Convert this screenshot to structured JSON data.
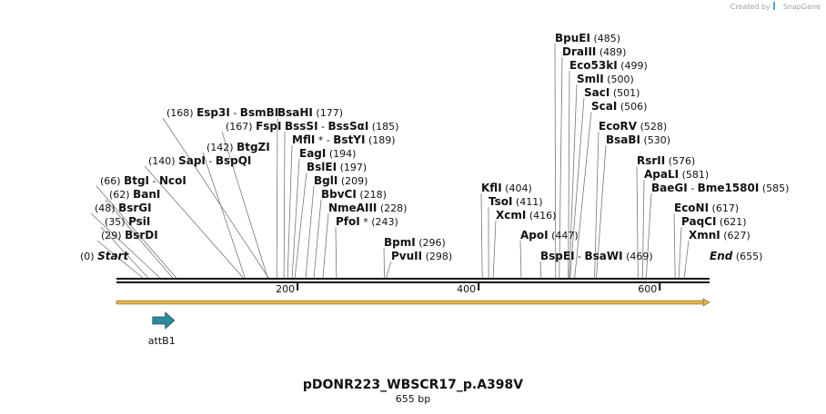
{
  "watermark": {
    "prefix": "Created by",
    "brand": "SnapGene"
  },
  "plasmid": {
    "name": "pDONR223_WBSCR17_p.A398V",
    "length_label": "655 bp",
    "length": 655
  },
  "ticks": [
    {
      "pos": 200,
      "label": "200"
    },
    {
      "pos": 400,
      "label": "400"
    },
    {
      "pos": 600,
      "label": "600"
    }
  ],
  "features": [
    {
      "name": "attB1",
      "start": 40,
      "end": 64,
      "direction": "forward",
      "color": "#2f8aa0"
    }
  ],
  "orf": {
    "start": 1,
    "end": 655,
    "color": "#e3b34a"
  },
  "sites": [
    {
      "id": "start",
      "parts": [
        {
          "t": "Start",
          "style": "italic"
        }
      ],
      "pos_label": "(0)",
      "pos": 0,
      "pos_side": "left"
    },
    {
      "id": "bsrdi",
      "parts": [
        {
          "t": "BsrDI"
        }
      ],
      "pos_label": "(29)",
      "pos": 29,
      "pos_side": "left"
    },
    {
      "id": "psii",
      "parts": [
        {
          "t": "PsiI"
        }
      ],
      "pos_label": "(35)",
      "pos": 35,
      "pos_side": "left"
    },
    {
      "id": "bsrgi",
      "parts": [
        {
          "t": "BsrGI"
        }
      ],
      "pos_label": "(48)",
      "pos": 48,
      "pos_side": "left"
    },
    {
      "id": "bani",
      "parts": [
        {
          "t": "BanI"
        }
      ],
      "pos_label": "(62)",
      "pos": 62,
      "pos_side": "left"
    },
    {
      "id": "btgi",
      "parts": [
        {
          "t": "BtgI"
        },
        {
          "t": " - ",
          "style": "sep"
        },
        {
          "t": "NcoI"
        }
      ],
      "pos_label": "(66)",
      "pos": 66,
      "pos_side": "left"
    },
    {
      "id": "sapi",
      "parts": [
        {
          "t": "SapI"
        },
        {
          "t": " - ",
          "style": "sep"
        },
        {
          "t": "BspQI"
        }
      ],
      "pos_label": "(140)",
      "pos": 140,
      "pos_side": "left"
    },
    {
      "id": "btgzi",
      "parts": [
        {
          "t": "BtgZI"
        }
      ],
      "pos_label": "(142)",
      "pos": 142,
      "pos_side": "left"
    },
    {
      "id": "fspi",
      "parts": [
        {
          "t": "FspI"
        }
      ],
      "pos_label": "(167)",
      "pos": 167,
      "pos_side": "left"
    },
    {
      "id": "esp3i",
      "parts": [
        {
          "t": "Esp3I"
        },
        {
          "t": " - ",
          "style": "sep"
        },
        {
          "t": "BsmBI"
        }
      ],
      "pos_label": "(168)",
      "pos": 168,
      "pos_side": "left"
    },
    {
      "id": "bsahi",
      "parts": [
        {
          "t": "BsaHI"
        }
      ],
      "pos_label": "(177)",
      "pos": 177,
      "pos_side": "right"
    },
    {
      "id": "bsssi",
      "parts": [
        {
          "t": "BssSI"
        },
        {
          "t": " - ",
          "style": "sep"
        },
        {
          "t": "BssSαI"
        }
      ],
      "pos_label": "(185)",
      "pos": 185,
      "pos_side": "right"
    },
    {
      "id": "mfli",
      "parts": [
        {
          "t": "MflI"
        },
        {
          "t": " * - ",
          "style": "sep"
        },
        {
          "t": "BstYI"
        }
      ],
      "pos_label": "(189)",
      "pos": 189,
      "pos_side": "right"
    },
    {
      "id": "eagi",
      "parts": [
        {
          "t": "EagI"
        }
      ],
      "pos_label": "(194)",
      "pos": 194,
      "pos_side": "right"
    },
    {
      "id": "bslei",
      "parts": [
        {
          "t": "BslEI"
        }
      ],
      "pos_label": "(197)",
      "pos": 197,
      "pos_side": "right"
    },
    {
      "id": "bgli",
      "parts": [
        {
          "t": "BglI"
        }
      ],
      "pos_label": "(209)",
      "pos": 209,
      "pos_side": "right"
    },
    {
      "id": "bbvci",
      "parts": [
        {
          "t": "BbvCI"
        }
      ],
      "pos_label": "(218)",
      "pos": 218,
      "pos_side": "right"
    },
    {
      "id": "nmeaiii",
      "parts": [
        {
          "t": "NmeAIII"
        }
      ],
      "pos_label": "(228)",
      "pos": 228,
      "pos_side": "right"
    },
    {
      "id": "pfoi",
      "parts": [
        {
          "t": "PfoI"
        },
        {
          "t": " *",
          "style": "sep"
        }
      ],
      "pos_label": "(243)",
      "pos": 243,
      "pos_side": "right"
    },
    {
      "id": "bpmi",
      "parts": [
        {
          "t": "BpmI"
        }
      ],
      "pos_label": "(296)",
      "pos": 296,
      "pos_side": "right"
    },
    {
      "id": "pvuii",
      "parts": [
        {
          "t": "PvuII"
        }
      ],
      "pos_label": "(298)",
      "pos": 298,
      "pos_side": "right"
    },
    {
      "id": "kfli",
      "parts": [
        {
          "t": "KflI"
        }
      ],
      "pos_label": "(404)",
      "pos": 404,
      "pos_side": "right"
    },
    {
      "id": "tsoi",
      "parts": [
        {
          "t": "TsoI"
        }
      ],
      "pos_label": "(411)",
      "pos": 411,
      "pos_side": "right"
    },
    {
      "id": "xcmi",
      "parts": [
        {
          "t": "XcmI"
        }
      ],
      "pos_label": "(416)",
      "pos": 416,
      "pos_side": "right"
    },
    {
      "id": "apoi",
      "parts": [
        {
          "t": "ApoI"
        }
      ],
      "pos_label": "(447)",
      "pos": 447,
      "pos_side": "right"
    },
    {
      "id": "bspei",
      "parts": [
        {
          "t": "BspEI"
        },
        {
          "t": " - ",
          "style": "sep"
        },
        {
          "t": "BsaWI"
        }
      ],
      "pos_label": "(469)",
      "pos": 469,
      "pos_side": "right"
    },
    {
      "id": "bpuei",
      "parts": [
        {
          "t": "BpuEI"
        }
      ],
      "pos_label": "(485)",
      "pos": 485,
      "pos_side": "right"
    },
    {
      "id": "draiii",
      "parts": [
        {
          "t": "DraIII"
        }
      ],
      "pos_label": "(489)",
      "pos": 489,
      "pos_side": "right"
    },
    {
      "id": "eco53ki",
      "parts": [
        {
          "t": "Eco53kI"
        }
      ],
      "pos_label": "(499)",
      "pos": 499,
      "pos_side": "right"
    },
    {
      "id": "smli",
      "parts": [
        {
          "t": "SmlI"
        }
      ],
      "pos_label": "(500)",
      "pos": 500,
      "pos_side": "right"
    },
    {
      "id": "saci",
      "parts": [
        {
          "t": "SacI"
        }
      ],
      "pos_label": "(501)",
      "pos": 501,
      "pos_side": "right"
    },
    {
      "id": "scai",
      "parts": [
        {
          "t": "ScaI"
        }
      ],
      "pos_label": "(506)",
      "pos": 506,
      "pos_side": "right"
    },
    {
      "id": "ecorv",
      "parts": [
        {
          "t": "EcoRV"
        }
      ],
      "pos_label": "(528)",
      "pos": 528,
      "pos_side": "right"
    },
    {
      "id": "bsabi",
      "parts": [
        {
          "t": "BsaBI"
        }
      ],
      "pos_label": "(530)",
      "pos": 530,
      "pos_side": "right"
    },
    {
      "id": "rsrii",
      "parts": [
        {
          "t": "RsrII"
        }
      ],
      "pos_label": "(576)",
      "pos": 576,
      "pos_side": "right"
    },
    {
      "id": "apali",
      "parts": [
        {
          "t": "ApaLI"
        }
      ],
      "pos_label": "(581)",
      "pos": 581,
      "pos_side": "right"
    },
    {
      "id": "baegi",
      "parts": [
        {
          "t": "BaeGI"
        },
        {
          "t": " - ",
          "style": "sep"
        },
        {
          "t": "Bme1580I"
        }
      ],
      "pos_label": "(585)",
      "pos": 585,
      "pos_side": "right"
    },
    {
      "id": "econi",
      "parts": [
        {
          "t": "EcoNI"
        }
      ],
      "pos_label": "(617)",
      "pos": 617,
      "pos_side": "right"
    },
    {
      "id": "paqci",
      "parts": [
        {
          "t": "PaqCI"
        }
      ],
      "pos_label": "(621)",
      "pos": 621,
      "pos_side": "right"
    },
    {
      "id": "xmni",
      "parts": [
        {
          "t": "XmnI"
        }
      ],
      "pos_label": "(627)",
      "pos": 627,
      "pos_side": "right"
    },
    {
      "id": "end",
      "parts": [
        {
          "t": "End",
          "style": "italic"
        }
      ],
      "pos_label": "(655)",
      "pos": 655,
      "pos_side": "right"
    }
  ]
}
